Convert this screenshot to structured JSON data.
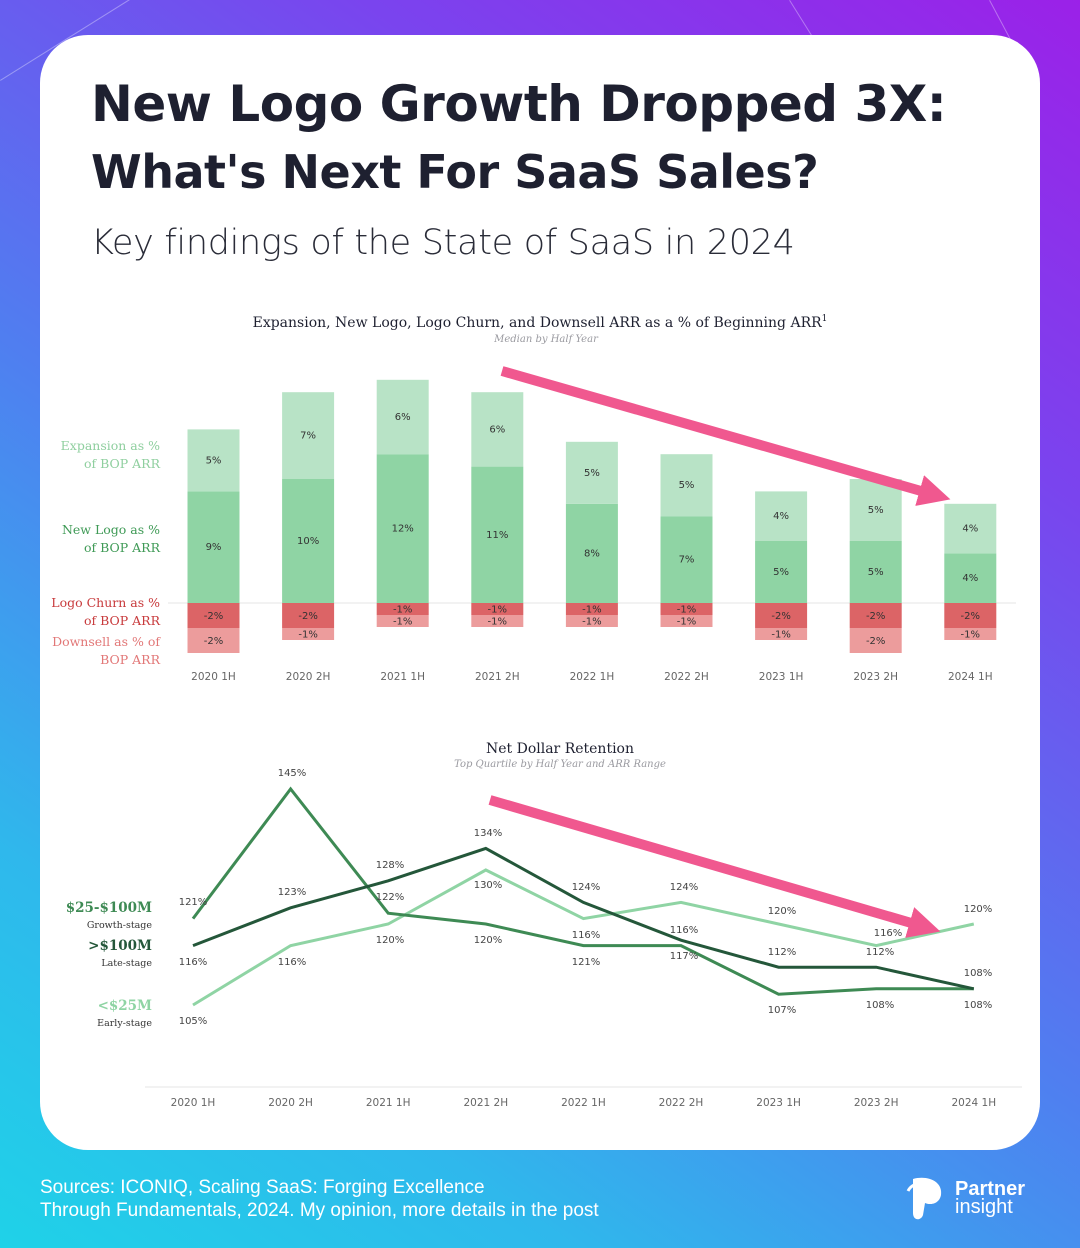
{
  "header": {
    "title_line1": "New Logo Growth Dropped 3X:",
    "title_line2": "What's Next For SaaS Sales?",
    "subtitle": "Key findings of the State of SaaS in 2024"
  },
  "footer": {
    "source_line1": "Sources: ICONIQ, Scaling SaaS: Forging Excellence",
    "source_line2": "Through Fundamentals, 2024. My opinion, more details in the post",
    "brand_line1": "Partner",
    "brand_line2": "insight"
  },
  "colors": {
    "expansion": "#b8e3c6",
    "new_logo": "#8fd4a4",
    "logo_churn": "#dc6466",
    "downsell": "#ec9c9c",
    "arrow": "#f0588f",
    "growth_stage": "#3e8a54",
    "late_stage": "#24573a",
    "early_stage": "#8fd4a4"
  },
  "chart_data": [
    {
      "type": "bar",
      "stacked": true,
      "title": "Expansion, New Logo, Logo Churn, and Downsell ARR as a % of Beginning ARR",
      "title_superscript": "1",
      "subtitle": "Median by Half Year",
      "categories": [
        "2020 1H",
        "2020 2H",
        "2021 1H",
        "2021 2H",
        "2022 1H",
        "2022 2H",
        "2023 1H",
        "2023 2H",
        "2024 1H"
      ],
      "series": [
        {
          "name": "Expansion as % of BOP ARR",
          "color": "#b8e3c6",
          "values": [
            5,
            7,
            6,
            6,
            5,
            5,
            4,
            5,
            4
          ],
          "labels": [
            "5%",
            "7%",
            "6%",
            "6%",
            "5%",
            "5%",
            "4%",
            "5%",
            "4%"
          ]
        },
        {
          "name": "New Logo as % of BOP ARR",
          "color": "#8fd4a4",
          "values": [
            9,
            10,
            12,
            11,
            8,
            7,
            5,
            5,
            4
          ],
          "labels": [
            "9%",
            "10%",
            "12%",
            "11%",
            "8%",
            "7%",
            "5%",
            "5%",
            "4%"
          ]
        },
        {
          "name": "Logo Churn as % of BOP ARR",
          "color": "#dc6466",
          "values": [
            -2,
            -2,
            -1,
            -1,
            -1,
            -1,
            -2,
            -2,
            -2
          ],
          "labels": [
            "-2%",
            "-2%",
            "-1%",
            "-1%",
            "-1%",
            "-1%",
            "-2%",
            "-2%",
            "-2%"
          ]
        },
        {
          "name": "Downsell as % of BOP ARR",
          "color": "#ec9c9c",
          "values": [
            -2,
            -1,
            -1,
            -1,
            -1,
            -1,
            -1,
            -2,
            -1
          ],
          "labels": [
            "-2%",
            "-1%",
            "-1%",
            "-1%",
            "-1%",
            "-1%",
            "-1%",
            "-2%",
            "-1%"
          ]
        }
      ],
      "legend": [
        {
          "line1": "Expansion as %",
          "line2": "of BOP ARR",
          "color": "#8fcf9f"
        },
        {
          "line1": "New Logo as %",
          "line2": "of BOP ARR",
          "color": "#3f9a56"
        },
        {
          "line1": "Logo Churn as %",
          "line2": "of BOP ARR",
          "color": "#c83a3c"
        },
        {
          "line1": "Downsell as % of",
          "line2": "BOP ARR",
          "color": "#e27777"
        }
      ],
      "legend_placement": "left",
      "annotation": "downward trend arrow"
    },
    {
      "type": "line",
      "title": "Net Dollar Retention",
      "subtitle": "Top Quartile by Half Year and ARR Range",
      "x": [
        "2020 1H",
        "2020 2H",
        "2021 1H",
        "2021 2H",
        "2022 1H",
        "2022 2H",
        "2023 1H",
        "2023 2H",
        "2024 1H"
      ],
      "series": [
        {
          "name": "$25-$100M",
          "sublabel": "Growth-stage",
          "color": "#3e8a54",
          "values": [
            121,
            145,
            122,
            120,
            116,
            116,
            107,
            108,
            108
          ],
          "labels": [
            "121%",
            "145%",
            "122%",
            "120%",
            "116%",
            "116%",
            "107%",
            "108%",
            "108%"
          ]
        },
        {
          "name": ">$100M",
          "sublabel": "Late-stage",
          "color": "#24573a",
          "values": [
            116,
            123,
            128,
            134,
            124,
            117,
            112,
            112,
            108
          ],
          "labels": [
            "116%",
            "123%",
            "128%",
            "134%",
            "124%",
            "117%",
            "112%",
            "112%",
            "108%"
          ]
        },
        {
          "name": "<$25M",
          "sublabel": "Early-stage",
          "color": "#8fd4a4",
          "values": [
            105,
            116,
            120,
            130,
            121,
            124,
            120,
            116,
            120
          ],
          "labels": [
            "105%",
            "116%",
            "120%",
            "130%",
            "121%",
            "124%",
            "120%",
            "116%",
            "120%"
          ]
        }
      ],
      "legend_placement": "left",
      "annotation": "downward trend arrow"
    }
  ]
}
